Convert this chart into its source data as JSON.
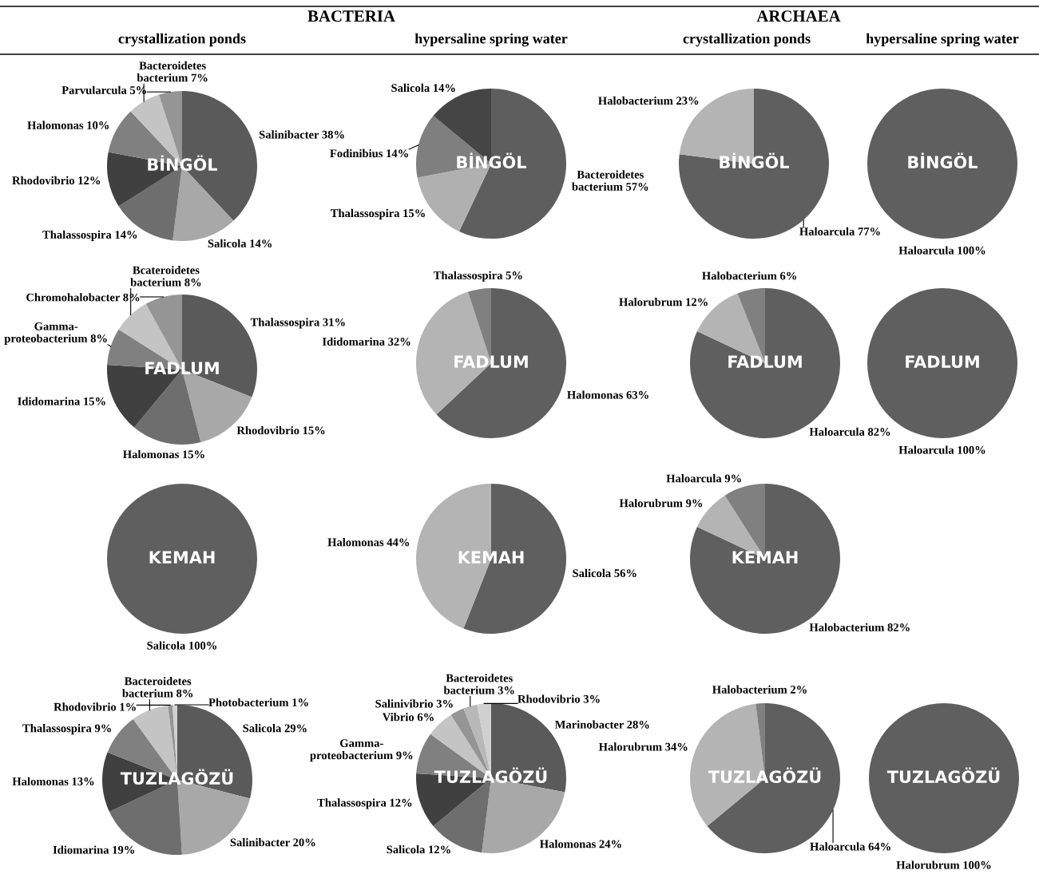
{
  "chart_data": [
    {
      "type": "other",
      "annotations": [
        "BACTERIA",
        "ARCHAEA",
        "crystallization ponds",
        "hypersaline spring water",
        "crystallization ponds",
        "hypersaline spring water"
      ]
    },
    {
      "type": "pie",
      "annotations": [
        "BİNGÖL"
      ],
      "categories": [
        "Salinibacter",
        "Salicola",
        "Thalassospira",
        "Rhodovibrio",
        "Halomonas",
        "Bacteroidetes bacterium",
        "Parvularcula"
      ],
      "values": [
        38,
        14,
        14,
        12,
        10,
        7,
        5
      ],
      "value_labels": [
        "38%",
        "14%",
        "14%",
        "12%",
        "10%",
        "7%",
        "5%"
      ],
      "colors": [
        "#5a5a5a",
        "#a8a8a8",
        "#6e6e6e",
        "#404040",
        "#808080",
        "#c4c4c4",
        "#959595"
      ]
    },
    {
      "type": "pie",
      "annotations": [
        "BİNGÖL"
      ],
      "categories": [
        "Bacteroidetes bacterium",
        "Thalassospira",
        "Fodinibius",
        "Salicola"
      ],
      "values": [
        57,
        15,
        14,
        14
      ],
      "value_labels": [
        "57%",
        "15%",
        "14%",
        "14%"
      ],
      "colors": [
        "#5e5e5e",
        "#b0b0b0",
        "#7f7f7f",
        "#454545"
      ]
    },
    {
      "type": "pie",
      "annotations": [
        "BİNGÖL"
      ],
      "categories": [
        "Haloarcula",
        "Halobacterium"
      ],
      "values": [
        77,
        23
      ],
      "value_labels": [
        "77%",
        "23%"
      ],
      "colors": [
        "#5f5f5f",
        "#b4b4b4"
      ]
    },
    {
      "type": "pie",
      "annotations": [
        "BİNGÖL"
      ],
      "categories": [
        "Haloarcula"
      ],
      "values": [
        100
      ],
      "value_labels": [
        "100%"
      ],
      "colors": [
        "#5f5f5f"
      ]
    },
    {
      "type": "pie",
      "annotations": [
        "FADLUM"
      ],
      "categories": [
        "Thalassospira",
        "Rhodovibrio",
        "Halomonas",
        "Ididomarina",
        "Gamma-proteobacterium",
        "Bcateroidetes bacterium",
        "Chromohalobacter"
      ],
      "values": [
        31,
        15,
        15,
        15,
        8,
        8,
        8
      ],
      "value_labels": [
        "31%",
        "15%",
        "15%",
        "15%",
        "8%",
        "8%",
        "8%"
      ],
      "colors": [
        "#5a5a5a",
        "#a8a8a8",
        "#6e6e6e",
        "#404040",
        "#808080",
        "#c4c4c4",
        "#959595"
      ]
    },
    {
      "type": "pie",
      "annotations": [
        "FADLUM"
      ],
      "categories": [
        "Halomonas",
        "Ididomarina",
        "Thalassospira"
      ],
      "values": [
        63,
        32,
        5
      ],
      "value_labels": [
        "63%",
        "32%",
        "5%"
      ],
      "colors": [
        "#5f5f5f",
        "#b4b4b4",
        "#808080"
      ]
    },
    {
      "type": "pie",
      "annotations": [
        "FADLUM"
      ],
      "categories": [
        "Haloarcula",
        "Halorubrum",
        "Halobacterium"
      ],
      "values": [
        82,
        12,
        6
      ],
      "value_labels": [
        "82%",
        "12%",
        "6%"
      ],
      "colors": [
        "#5f5f5f",
        "#b4b4b4",
        "#808080"
      ]
    },
    {
      "type": "pie",
      "annotations": [
        "FADLUM"
      ],
      "categories": [
        "Haloarcula"
      ],
      "values": [
        100
      ],
      "value_labels": [
        "100%"
      ],
      "colors": [
        "#5f5f5f"
      ]
    },
    {
      "type": "pie",
      "annotations": [
        "KEMAH"
      ],
      "categories": [
        "Salicola"
      ],
      "values": [
        100
      ],
      "value_labels": [
        "100%"
      ],
      "colors": [
        "#5f5f5f"
      ]
    },
    {
      "type": "pie",
      "annotations": [
        "KEMAH"
      ],
      "categories": [
        "Salicola",
        "Halomonas"
      ],
      "values": [
        56,
        44
      ],
      "value_labels": [
        "56%",
        "44%"
      ],
      "colors": [
        "#5f5f5f",
        "#b4b4b4"
      ]
    },
    {
      "type": "pie",
      "annotations": [
        "KEMAH"
      ],
      "categories": [
        "Halobacterium",
        "Halorubrum",
        "Haloarcula"
      ],
      "values": [
        82,
        9,
        9
      ],
      "value_labels": [
        "82%",
        "9%",
        "9%"
      ],
      "colors": [
        "#5f5f5f",
        "#b4b4b4",
        "#808080"
      ]
    },
    {
      "type": "pie",
      "annotations": [
        "TUZLAGÖZÜ"
      ],
      "categories": [
        "Salicola",
        "Salinibacter",
        "Idiomarina",
        "Halomonas",
        "Thalassospira",
        "Bacteroidetes bacterium",
        "Rhodovibrio",
        "Photobacterium"
      ],
      "values": [
        29,
        20,
        19,
        13,
        9,
        8,
        1,
        1
      ],
      "value_labels": [
        "29%",
        "20%",
        "19%",
        "13%",
        "9%",
        "8%",
        "1%",
        "1%"
      ],
      "colors": [
        "#5a5a5a",
        "#a8a8a8",
        "#6e6e6e",
        "#404040",
        "#808080",
        "#c4c4c4",
        "#959595",
        "#d0d0d0"
      ]
    },
    {
      "type": "pie",
      "annotations": [
        "TUZLAGÖZÜ"
      ],
      "categories": [
        "Marinobacter",
        "Halomonas",
        "Salicola",
        "Thalassospira",
        "Gamma-proteobacterium",
        "Vibrio",
        "Salinivibrio",
        "Bacteroidetes bacterium",
        "Rhodovibrio"
      ],
      "values": [
        28,
        24,
        12,
        12,
        9,
        6,
        3,
        3,
        3
      ],
      "value_labels": [
        "28%",
        "24%",
        "12%",
        "12%",
        "9%",
        "6%",
        "3%",
        "3%",
        "3%"
      ],
      "colors": [
        "#5a5a5a",
        "#a8a8a8",
        "#6e6e6e",
        "#404040",
        "#808080",
        "#c4c4c4",
        "#959595",
        "#b8b8b8",
        "#d0d0d0"
      ]
    },
    {
      "type": "pie",
      "annotations": [
        "TUZLAGÖZÜ"
      ],
      "categories": [
        "Haloarcula",
        "Halorubrum",
        "Halobacterium"
      ],
      "values": [
        64,
        34,
        2
      ],
      "value_labels": [
        "64%",
        "34%",
        "2%"
      ],
      "colors": [
        "#5f5f5f",
        "#b4b4b4",
        "#808080"
      ]
    },
    {
      "type": "pie",
      "annotations": [
        "TUZLAGÖZÜ"
      ],
      "categories": [
        "Halorubrum"
      ],
      "values": [
        100
      ],
      "value_labels": [
        "100%"
      ],
      "colors": [
        "#5f5f5f"
      ]
    }
  ]
}
